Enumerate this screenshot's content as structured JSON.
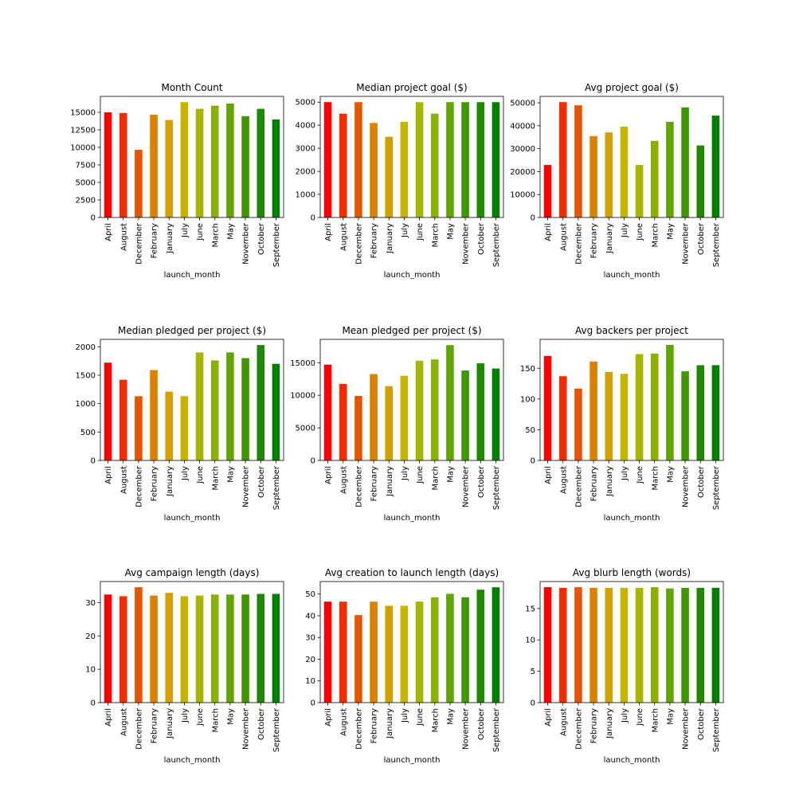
{
  "chart_data": [
    {
      "type": "bar",
      "title": "Month Count",
      "xlabel": "launch_month",
      "ylabel": "",
      "categories": [
        "April",
        "August",
        "December",
        "February",
        "January",
        "July",
        "June",
        "March",
        "May",
        "November",
        "October",
        "September"
      ],
      "values": [
        15000,
        14900,
        9650,
        14650,
        13900,
        16450,
        15500,
        15950,
        16250,
        14450,
        15500,
        13980
      ],
      "ylim": [
        0,
        17270
      ],
      "yticks": [
        0,
        2500,
        5000,
        7500,
        10000,
        12500,
        15000
      ]
    },
    {
      "type": "bar",
      "title": "Median project goal ($)",
      "xlabel": "launch_month",
      "ylabel": "",
      "categories": [
        "April",
        "August",
        "December",
        "February",
        "January",
        "July",
        "June",
        "March",
        "May",
        "November",
        "October",
        "September"
      ],
      "values": [
        5000,
        4500,
        5000,
        4100,
        3500,
        4150,
        5000,
        4500,
        5000,
        5000,
        5000,
        5000
      ],
      "ylim": [
        0,
        5250
      ],
      "yticks": [
        0,
        1000,
        2000,
        3000,
        4000,
        5000
      ]
    },
    {
      "type": "bar",
      "title": "Avg project goal ($)",
      "xlabel": "launch_month",
      "ylabel": "",
      "categories": [
        "April",
        "August",
        "December",
        "February",
        "January",
        "July",
        "June",
        "March",
        "May",
        "November",
        "October",
        "September"
      ],
      "values": [
        22900,
        50300,
        48900,
        35500,
        37100,
        39600,
        22900,
        33400,
        41700,
        48000,
        31400,
        44400
      ],
      "ylim": [
        0,
        52800
      ],
      "yticks": [
        0,
        10000,
        20000,
        30000,
        40000,
        50000
      ]
    },
    {
      "type": "bar",
      "title": "Median pledged per project ($)",
      "xlabel": "launch_month",
      "ylabel": "",
      "categories": [
        "April",
        "August",
        "December",
        "February",
        "January",
        "July",
        "June",
        "March",
        "May",
        "November",
        "October",
        "September"
      ],
      "values": [
        1720,
        1420,
        1130,
        1590,
        1210,
        1130,
        1900,
        1760,
        1900,
        1800,
        2030,
        1700
      ],
      "ylim": [
        0,
        2130
      ],
      "yticks": [
        0,
        500,
        1000,
        1500,
        2000
      ]
    },
    {
      "type": "bar",
      "title": "Mean pledged per project ($)",
      "xlabel": "launch_month",
      "ylabel": "",
      "categories": [
        "April",
        "August",
        "December",
        "February",
        "January",
        "July",
        "June",
        "March",
        "May",
        "November",
        "October",
        "September"
      ],
      "values": [
        14700,
        11750,
        9900,
        13250,
        11400,
        13000,
        15300,
        15500,
        17700,
        13800,
        14900,
        14100
      ],
      "ylim": [
        0,
        18580
      ],
      "yticks": [
        0,
        5000,
        10000,
        15000
      ]
    },
    {
      "type": "bar",
      "title": "Avg backers per project",
      "xlabel": "launch_month",
      "ylabel": "",
      "categories": [
        "April",
        "August",
        "December",
        "February",
        "January",
        "July",
        "June",
        "March",
        "May",
        "November",
        "October",
        "September"
      ],
      "values": [
        170,
        137,
        117,
        161,
        144,
        141,
        173,
        174,
        188,
        145,
        155,
        155
      ],
      "ylim": [
        0,
        197
      ],
      "yticks": [
        0,
        50,
        100,
        150
      ]
    },
    {
      "type": "bar",
      "title": "Avg campaign length (days)",
      "xlabel": "launch_month",
      "ylabel": "",
      "categories": [
        "April",
        "August",
        "December",
        "February",
        "January",
        "July",
        "June",
        "March",
        "May",
        "November",
        "October",
        "September"
      ],
      "values": [
        32.4,
        31.9,
        34.6,
        32.1,
        32.9,
        31.9,
        32.1,
        32.4,
        32.4,
        32.4,
        32.6,
        32.6
      ],
      "ylim": [
        0,
        36.3
      ],
      "yticks": [
        0,
        10,
        20,
        30
      ]
    },
    {
      "type": "bar",
      "title": "Avg creation to launch length (days)",
      "xlabel": "launch_month",
      "ylabel": "",
      "categories": [
        "April",
        "August",
        "December",
        "February",
        "January",
        "July",
        "June",
        "March",
        "May",
        "November",
        "October",
        "September"
      ],
      "values": [
        46.5,
        46.5,
        40.3,
        46.5,
        44.6,
        44.6,
        46.5,
        48.5,
        50.1,
        48.5,
        52.0,
        53.1
      ],
      "ylim": [
        0,
        55.75
      ],
      "yticks": [
        0,
        10,
        20,
        30,
        40,
        50
      ]
    },
    {
      "type": "bar",
      "title": "Avg blurb length (words)",
      "xlabel": "launch_month",
      "ylabel": "",
      "categories": [
        "April",
        "August",
        "December",
        "February",
        "January",
        "July",
        "June",
        "March",
        "May",
        "November",
        "October",
        "September"
      ],
      "values": [
        18.4,
        18.3,
        18.4,
        18.3,
        18.3,
        18.3,
        18.3,
        18.4,
        18.2,
        18.3,
        18.3,
        18.3
      ],
      "ylim": [
        0,
        19.3
      ],
      "yticks": [
        0,
        5,
        10,
        15
      ]
    }
  ],
  "colors": [
    "#ff0000",
    "#f32b00",
    "#e85500",
    "#dc8000",
    "#d1a000",
    "#c6b400",
    "#a8b600",
    "#88b100",
    "#62a500",
    "#3f9700",
    "#1f8800",
    "#007f00"
  ]
}
